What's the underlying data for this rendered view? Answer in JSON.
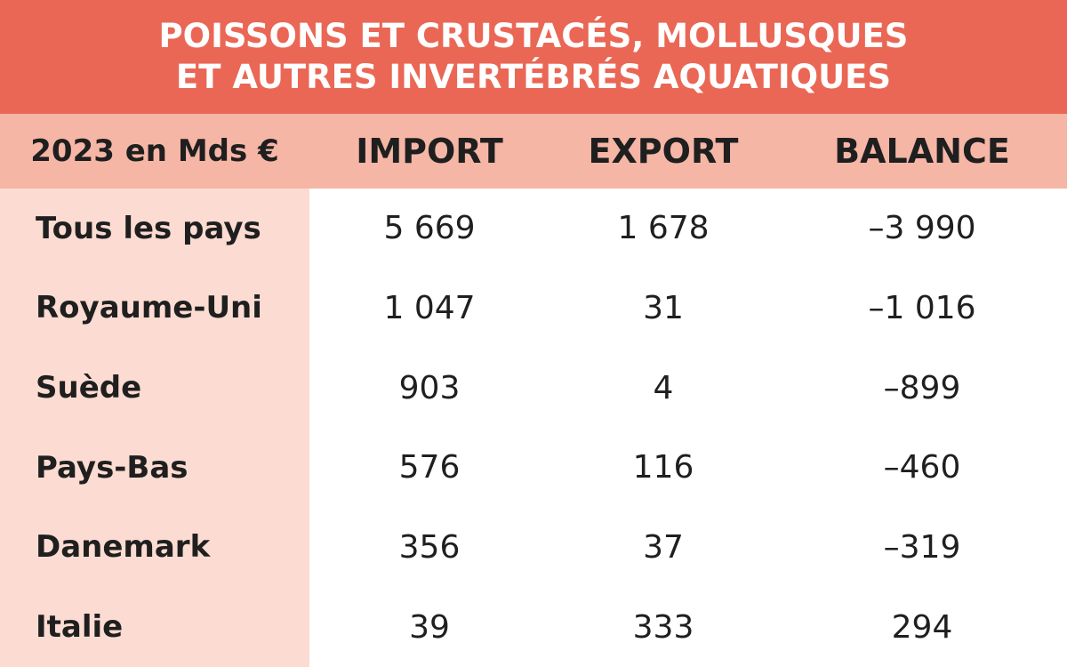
{
  "header": {
    "title_lines": [
      "POISSONS ET CRUSTACÉS, MOLLUSQUES",
      "ET AUTRES INVERTÉBRÉS AQUATIQUES"
    ]
  },
  "table": {
    "columns": [
      "2023 en Mds €",
      "IMPORT",
      "EXPORT",
      "BALANCE"
    ],
    "rows": [
      [
        "Tous les pays",
        "5 669",
        "1 678",
        "–3 990"
      ],
      [
        "Royaume-Uni",
        "1 047",
        "31",
        "–1 016"
      ],
      [
        "Suède",
        "903",
        "4",
        "–899"
      ],
      [
        "Pays-Bas",
        "576",
        "116",
        "–460"
      ],
      [
        "Danemark",
        "356",
        "37",
        "–319"
      ],
      [
        "Italie",
        "39",
        "333",
        "294"
      ]
    ]
  }
}
